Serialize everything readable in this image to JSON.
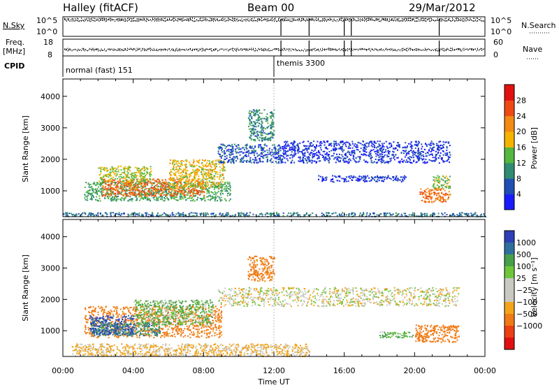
{
  "header": {
    "radar": "Halley (fitACF)",
    "beam": "Beam 00",
    "date": "29/Mar/2012"
  },
  "summary_panels": {
    "nsky": {
      "label": "N.Sky",
      "ticks": [
        "10^5",
        "10^0"
      ]
    },
    "nsearch": {
      "label": "N.Search",
      "ticks": [
        "10^5",
        "10^0"
      ]
    },
    "freq": {
      "label_line1": "Freq.",
      "label_line2": "[MHz]",
      "ticks": [
        "18",
        "8"
      ]
    },
    "nave": {
      "label": "Nave",
      "ticks": [
        "60",
        "0"
      ]
    },
    "cpid": {
      "label": "CPID",
      "modes": [
        {
          "text": "normal (fast) 151",
          "start_hour": 0.0
        },
        {
          "text": "themis 3300",
          "start_hour": 12.0
        }
      ]
    },
    "events_hours": [
      12.4,
      14.0,
      16.0,
      16.4,
      21.4
    ]
  },
  "time_axis": {
    "label": "Time UT",
    "ticks": [
      "00:00",
      "04:00",
      "08:00",
      "12:00",
      "16:00",
      "20:00",
      "00:00"
    ],
    "range_hours": [
      0,
      24
    ]
  },
  "chart_data": [
    {
      "type": "heatmap",
      "panel": "power",
      "ylabel": "Slant Range [km]",
      "y_ticks": [
        "1000",
        "2000",
        "3000",
        "4000"
      ],
      "ylim": [
        180,
        4550
      ],
      "colorbar": {
        "label": "Power [dB]",
        "ticks": [
          "4",
          "8",
          "12",
          "16",
          "20",
          "24",
          "28"
        ],
        "range": [
          0,
          32
        ]
      },
      "regions": [
        {
          "t": [
            1.2,
            9.5
          ],
          "r": [
            700,
            1300
          ],
          "value": 14
        },
        {
          "t": [
            2.2,
            8.0
          ],
          "r": [
            850,
            1400
          ],
          "value": 26
        },
        {
          "t": [
            6.0,
            9.2
          ],
          "r": [
            1100,
            2000
          ],
          "value": 20
        },
        {
          "t": [
            2.0,
            5.0
          ],
          "r": [
            1300,
            1800
          ],
          "value": 18
        },
        {
          "t": [
            8.8,
            12.5
          ],
          "r": [
            1900,
            2500
          ],
          "value": 8
        },
        {
          "t": [
            12.5,
            22.0
          ],
          "r": [
            1900,
            2600
          ],
          "value": 6
        },
        {
          "t": [
            14.5,
            19.5
          ],
          "r": [
            1300,
            1500
          ],
          "value": 6
        },
        {
          "t": [
            20.2,
            22.0
          ],
          "r": [
            650,
            1100
          ],
          "value": 26
        },
        {
          "t": [
            21.0,
            22.0
          ],
          "r": [
            1100,
            1500
          ],
          "value": 16
        },
        {
          "t": [
            10.5,
            12.0
          ],
          "r": [
            2600,
            3600
          ],
          "value": 12
        },
        {
          "t": [
            0.0,
            24.0
          ],
          "r": [
            200,
            330
          ],
          "value": 10
        }
      ]
    },
    {
      "type": "heatmap",
      "panel": "velocity",
      "ylabel": "Slant Range [km]",
      "y_ticks": [
        "1000",
        "2000",
        "3000",
        "4000"
      ],
      "ylim": [
        180,
        4550
      ],
      "colorbar": {
        "label": "Velocity [m s⁻¹]",
        "ticks": [
          "1000",
          "500",
          "100",
          "25",
          "−25",
          "−100",
          "−500",
          "−1000"
        ]
      },
      "regions": [
        {
          "t": [
            1.2,
            9.0
          ],
          "r": [
            800,
            1800
          ],
          "value": -150
        },
        {
          "t": [
            1.5,
            5.5
          ],
          "r": [
            850,
            1300
          ],
          "value": 300
        },
        {
          "t": [
            1.5,
            4.0
          ],
          "r": [
            900,
            1500
          ],
          "value": 800
        },
        {
          "t": [
            4.0,
            8.5
          ],
          "r": [
            1200,
            2000
          ],
          "value": 60
        },
        {
          "t": [
            8.8,
            22.5
          ],
          "r": [
            1800,
            2400
          ],
          "value": 0
        },
        {
          "t": [
            20.0,
            22.5
          ],
          "r": [
            650,
            1200
          ],
          "value": -300
        },
        {
          "t": [
            10.5,
            12.0
          ],
          "r": [
            2600,
            3400
          ],
          "value": -150
        },
        {
          "t": [
            0.5,
            14.0
          ],
          "r": [
            200,
            600
          ],
          "value": -40
        },
        {
          "t": [
            18.0,
            20.0
          ],
          "r": [
            800,
            1000
          ],
          "value": 80
        }
      ]
    }
  ]
}
